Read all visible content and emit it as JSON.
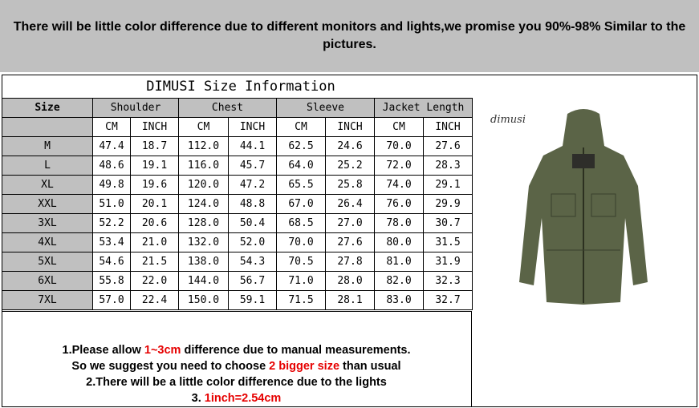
{
  "banner": "There will be little color difference due to different monitors and lights,we promise you 90%-98%  Similar to the pictures.",
  "title": "DIMUSI  Size Information",
  "headers": {
    "size": "Size",
    "groups": [
      "Shoulder",
      "Chest",
      "Sleeve",
      "Jacket Length"
    ],
    "units": [
      "CM",
      "INCH",
      "CM",
      "INCH",
      "CM",
      "INCH",
      "CM",
      "INCH"
    ]
  },
  "rows": [
    [
      "M",
      "47.4",
      "18.7",
      "112.0",
      "44.1",
      "62.5",
      "24.6",
      "70.0",
      "27.6"
    ],
    [
      "L",
      "48.6",
      "19.1",
      "116.0",
      "45.7",
      "64.0",
      "25.2",
      "72.0",
      "28.3"
    ],
    [
      "XL",
      "49.8",
      "19.6",
      "120.0",
      "47.2",
      "65.5",
      "25.8",
      "74.0",
      "29.1"
    ],
    [
      "XXL",
      "51.0",
      "20.1",
      "124.0",
      "48.8",
      "67.0",
      "26.4",
      "76.0",
      "29.9"
    ],
    [
      "3XL",
      "52.2",
      "20.6",
      "128.0",
      "50.4",
      "68.5",
      "27.0",
      "78.0",
      "30.7"
    ],
    [
      "4XL",
      "53.4",
      "21.0",
      "132.0",
      "52.0",
      "70.0",
      "27.6",
      "80.0",
      "31.5"
    ],
    [
      "5XL",
      "54.6",
      "21.5",
      "138.0",
      "54.3",
      "70.5",
      "27.8",
      "81.0",
      "31.9"
    ],
    [
      "6XL",
      "55.8",
      "22.0",
      "144.0",
      "56.7",
      "71.0",
      "28.0",
      "82.0",
      "32.3"
    ],
    [
      "7XL",
      "57.0",
      "22.4",
      "150.0",
      "59.1",
      "71.5",
      "28.1",
      "83.0",
      "32.7"
    ]
  ],
  "photo": {
    "brand": "dimusi",
    "jacket_color": "#5b6447"
  },
  "notes": {
    "l1a": "1.Please allow ",
    "l1b": "1~3cm",
    "l1c": " difference due to manual measurements.",
    "l2a": "So we suggest you need to choose ",
    "l2b": "2 bigger size",
    "l2c": " than usual",
    "l3": "2.There will be a little color difference due to the lights",
    "l4a": "3. ",
    "l4b": "1inch=2.54cm",
    "highlight_color": "#e60000"
  }
}
